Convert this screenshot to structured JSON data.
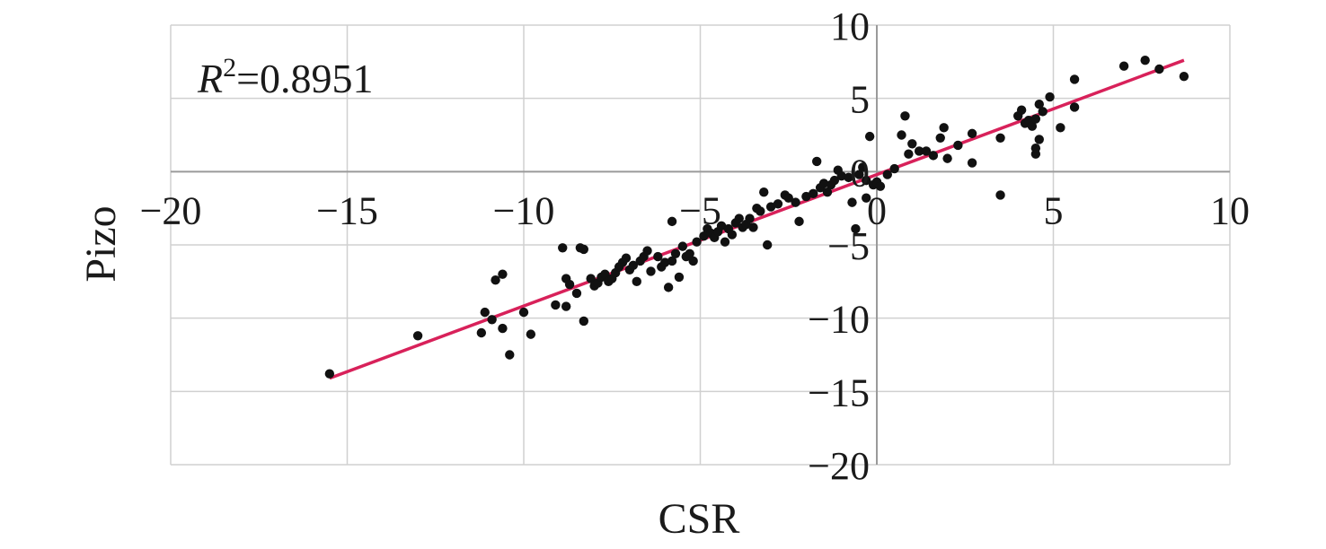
{
  "chart_data": {
    "type": "scatter",
    "xlabel": "CSR",
    "ylabel": "Pizo",
    "xlim": [
      -20,
      10
    ],
    "ylim": [
      -20,
      10
    ],
    "x_ticks": [
      -20,
      -15,
      -10,
      -5,
      0,
      5,
      10
    ],
    "y_ticks": [
      10,
      5,
      0,
      -5,
      -10,
      -15,
      -20
    ],
    "x_tick_labels": [
      "−20",
      "−15",
      "−10",
      "−5",
      "0",
      "5",
      "10"
    ],
    "y_tick_labels": [
      "10",
      "5",
      "0",
      "−5",
      "−10",
      "−15",
      "−20"
    ],
    "grid": true,
    "annotation": {
      "symbol": "R",
      "exponent": "2",
      "value_text": "=0.8951"
    },
    "fit_line": {
      "x": [
        -15.5,
        8.7
      ],
      "y": [
        -14.1,
        7.6
      ],
      "color": "#d8215a"
    },
    "point_color": "#111111",
    "points": [
      [
        -15.5,
        -13.8
      ],
      [
        -13.0,
        -11.2
      ],
      [
        -11.2,
        -11.0
      ],
      [
        -11.1,
        -9.6
      ],
      [
        -10.9,
        -10.1
      ],
      [
        -10.8,
        -7.4
      ],
      [
        -10.6,
        -7.0
      ],
      [
        -10.6,
        -10.7
      ],
      [
        -10.4,
        -12.5
      ],
      [
        -10.0,
        -9.6
      ],
      [
        -9.8,
        -11.1
      ],
      [
        -9.1,
        -9.1
      ],
      [
        -8.9,
        -5.2
      ],
      [
        -8.8,
        -7.3
      ],
      [
        -8.8,
        -9.2
      ],
      [
        -8.7,
        -7.7
      ],
      [
        -8.5,
        -8.3
      ],
      [
        -8.4,
        -5.2
      ],
      [
        -8.3,
        -5.3
      ],
      [
        -8.3,
        -10.2
      ],
      [
        -8.1,
        -7.3
      ],
      [
        -8.0,
        -7.8
      ],
      [
        -7.9,
        -7.6
      ],
      [
        -7.8,
        -7.2
      ],
      [
        -7.7,
        -7.0
      ],
      [
        -7.6,
        -7.5
      ],
      [
        -7.5,
        -7.3
      ],
      [
        -7.4,
        -6.9
      ],
      [
        -7.3,
        -6.5
      ],
      [
        -7.2,
        -6.2
      ],
      [
        -7.1,
        -5.9
      ],
      [
        -7.0,
        -6.7
      ],
      [
        -6.9,
        -6.4
      ],
      [
        -6.8,
        -7.5
      ],
      [
        -6.7,
        -6.1
      ],
      [
        -6.6,
        -5.8
      ],
      [
        -6.5,
        -5.4
      ],
      [
        -6.4,
        -6.8
      ],
      [
        -6.2,
        -5.8
      ],
      [
        -6.1,
        -6.5
      ],
      [
        -6.0,
        -6.2
      ],
      [
        -5.9,
        -7.9
      ],
      [
        -5.8,
        -3.4
      ],
      [
        -5.8,
        -6.1
      ],
      [
        -5.7,
        -5.6
      ],
      [
        -5.6,
        -7.2
      ],
      [
        -5.5,
        -5.1
      ],
      [
        -5.4,
        -5.8
      ],
      [
        -5.3,
        -5.6
      ],
      [
        -5.2,
        -6.1
      ],
      [
        -5.1,
        -4.8
      ],
      [
        -4.9,
        -4.4
      ],
      [
        -4.8,
        -3.9
      ],
      [
        -4.7,
        -4.2
      ],
      [
        -4.6,
        -4.5
      ],
      [
        -4.5,
        -4.1
      ],
      [
        -4.4,
        -3.7
      ],
      [
        -4.3,
        -4.8
      ],
      [
        -4.2,
        -3.9
      ],
      [
        -4.1,
        -4.3
      ],
      [
        -4.0,
        -3.5
      ],
      [
        -3.9,
        -3.2
      ],
      [
        -3.8,
        -3.8
      ],
      [
        -3.7,
        -3.6
      ],
      [
        -3.6,
        -3.2
      ],
      [
        -3.5,
        -3.8
      ],
      [
        -3.4,
        -2.5
      ],
      [
        -3.3,
        -2.7
      ],
      [
        -3.2,
        -1.4
      ],
      [
        -3.1,
        -5.0
      ],
      [
        -3.0,
        -2.4
      ],
      [
        -2.8,
        -2.2
      ],
      [
        -2.6,
        -1.6
      ],
      [
        -2.5,
        -1.8
      ],
      [
        -2.3,
        -2.1
      ],
      [
        -2.2,
        -3.4
      ],
      [
        -2.0,
        -1.7
      ],
      [
        -1.8,
        -1.5
      ],
      [
        -1.7,
        0.7
      ],
      [
        -1.6,
        -1.1
      ],
      [
        -1.5,
        -0.8
      ],
      [
        -1.4,
        -1.4
      ],
      [
        -1.3,
        -0.9
      ],
      [
        -1.2,
        -0.6
      ],
      [
        -1.1,
        0.1
      ],
      [
        -1.0,
        -0.3
      ],
      [
        -0.8,
        -0.4
      ],
      [
        -0.7,
        -2.1
      ],
      [
        -0.6,
        -3.9
      ],
      [
        -0.5,
        -0.2
      ],
      [
        -0.4,
        0.3
      ],
      [
        -0.3,
        -0.6
      ],
      [
        -0.3,
        -1.8
      ],
      [
        -0.2,
        2.4
      ],
      [
        -0.1,
        -0.9
      ],
      [
        0.0,
        -0.7
      ],
      [
        0.1,
        -1.0
      ],
      [
        0.3,
        -0.2
      ],
      [
        0.5,
        0.2
      ],
      [
        0.7,
        2.5
      ],
      [
        0.8,
        3.8
      ],
      [
        0.9,
        1.2
      ],
      [
        1.0,
        1.9
      ],
      [
        1.2,
        1.4
      ],
      [
        1.4,
        1.4
      ],
      [
        1.6,
        1.1
      ],
      [
        1.8,
        2.3
      ],
      [
        1.9,
        3.0
      ],
      [
        2.0,
        0.9
      ],
      [
        2.3,
        1.8
      ],
      [
        2.7,
        2.6
      ],
      [
        2.7,
        0.6
      ],
      [
        3.5,
        -1.6
      ],
      [
        3.5,
        2.3
      ],
      [
        4.0,
        3.8
      ],
      [
        4.1,
        4.2
      ],
      [
        4.2,
        3.3
      ],
      [
        4.3,
        3.5
      ],
      [
        4.4,
        3.1
      ],
      [
        4.5,
        1.2
      ],
      [
        4.5,
        1.6
      ],
      [
        4.5,
        3.6
      ],
      [
        4.6,
        4.6
      ],
      [
        4.6,
        2.2
      ],
      [
        4.7,
        4.1
      ],
      [
        4.9,
        5.1
      ],
      [
        5.2,
        3.0
      ],
      [
        5.6,
        6.3
      ],
      [
        5.6,
        4.4
      ],
      [
        7.0,
        7.2
      ],
      [
        7.6,
        7.6
      ],
      [
        8.0,
        7.0
      ],
      [
        8.7,
        6.5
      ]
    ]
  }
}
